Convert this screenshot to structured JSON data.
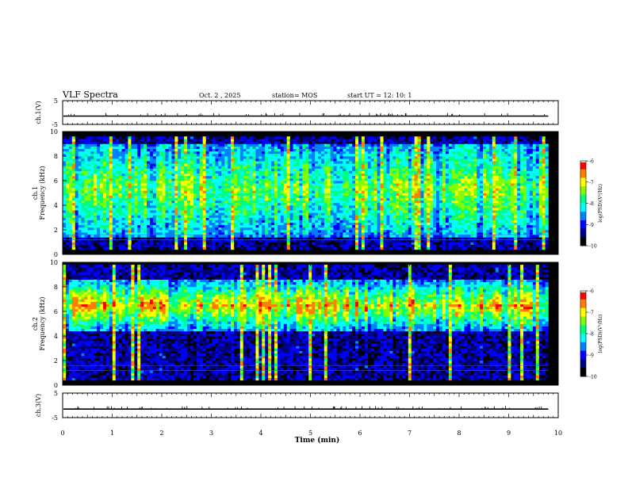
{
  "header": {
    "title": "VLF Spectra",
    "date": "Oct. 2 , 2025",
    "station": "station= MOS",
    "start": "start  UT =   12: 10: 1"
  },
  "chart_data": [
    {
      "type": "line",
      "ylabel": "ch.1(V)",
      "ylim": [
        -5,
        5
      ],
      "yticks": [
        5,
        -5
      ],
      "xlim": [
        0,
        10
      ],
      "baseline_value": -1.5
    },
    {
      "type": "heatmap",
      "ylabel_line1": "ch.1",
      "ylabel_line2": "Frequency (kHz)",
      "ylim": [
        0,
        10
      ],
      "yticks": [
        0,
        2,
        4,
        6,
        8,
        10
      ],
      "xlim": [
        0,
        10
      ],
      "data_end_min": 9.8,
      "band_kHz": [
        0.5,
        9.5
      ],
      "peak_band_kHz": [
        1.5,
        9
      ],
      "colorbar": {
        "label": "log(PSD)(V²/Hz)",
        "range": [
          -10,
          -6
        ],
        "ticks": [
          "-6",
          "-7",
          "-8",
          "-9",
          "-10"
        ]
      }
    },
    {
      "type": "heatmap",
      "ylabel_line1": "ch.2",
      "ylabel_line2": "Frequency (kHz)",
      "ylim": [
        0,
        10
      ],
      "yticks": [
        0,
        2,
        4,
        6,
        8,
        10
      ],
      "xlim": [
        0,
        10
      ],
      "data_end_min": 9.8,
      "band_kHz": [
        0.5,
        9.8
      ],
      "peak_band_kHz": [
        4.5,
        8.5
      ],
      "colorbar": {
        "label": "log(PSD)(V²/Hz)",
        "range": [
          -10,
          -6
        ],
        "ticks": [
          "-6",
          "-7",
          "-8",
          "-9",
          "-10"
        ]
      }
    },
    {
      "type": "line",
      "ylabel": "ch.3(V)",
      "ylim": [
        -5,
        5
      ],
      "yticks": [
        5,
        -5
      ],
      "xlim": [
        0,
        10
      ],
      "baseline_value": -1.5,
      "xlabel": "Time (min)",
      "xticks": [
        "0",
        "1",
        "2",
        "3",
        "4",
        "5",
        "6",
        "7",
        "8",
        "9",
        "10"
      ]
    }
  ],
  "colormap": [
    "#000000",
    "#000080",
    "#0000ff",
    "#0080ff",
    "#00ffff",
    "#00ff80",
    "#80ff00",
    "#ffff00",
    "#ff8000",
    "#ff0000",
    "#ffffff"
  ]
}
